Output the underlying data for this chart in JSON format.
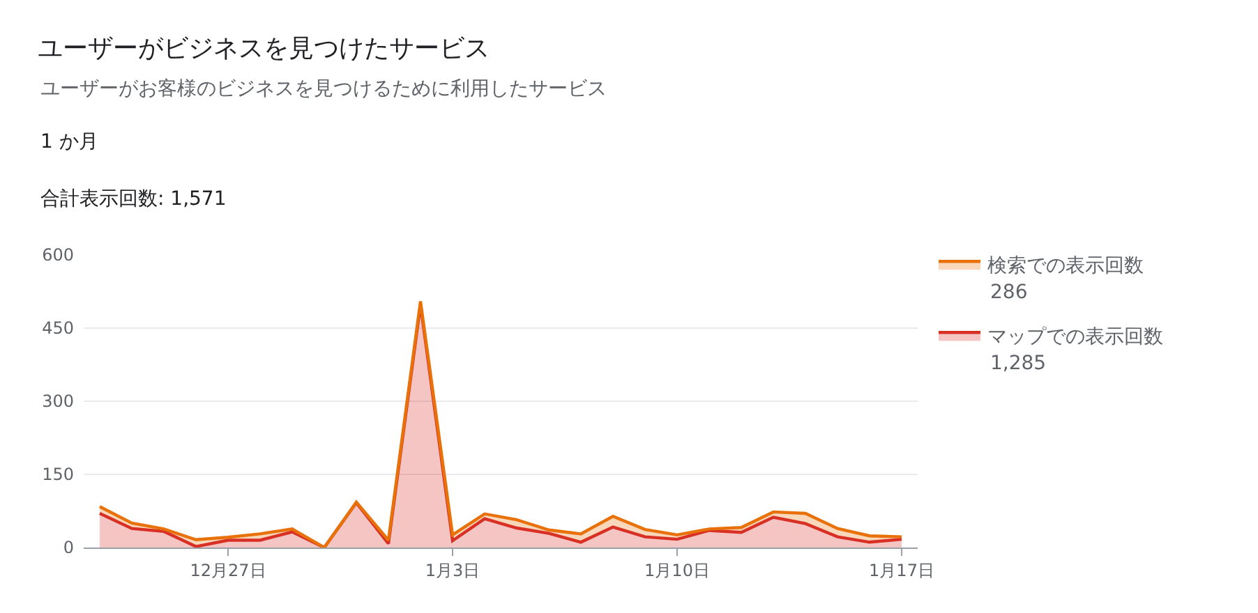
{
  "chart_data": {
    "type": "area",
    "title": "ユーザーがビジネスを見つけたサービス",
    "subtitle": "ユーザーがお客様のビジネスを見つけるために利用したサービス",
    "annotations": [
      "1 か月",
      "合計表示回数: 1,571",
      "286",
      "1,285"
    ],
    "categories": [
      null,
      null,
      null,
      null,
      "12月27日",
      null,
      null,
      null,
      null,
      null,
      null,
      "1月3日",
      null,
      null,
      null,
      null,
      null,
      null,
      "1月10日",
      null,
      null,
      null,
      null,
      null,
      null,
      "1月17日"
    ],
    "series": [
      {
        "name": "マップでの表示回数",
        "color": "#d93025",
        "values": [
          70,
          39,
          33,
          2,
          15,
          15,
          32,
          0,
          92,
          8,
          498,
          14,
          59,
          40,
          29,
          11,
          42,
          22,
          17,
          35,
          31,
          62,
          49,
          22,
          11,
          17
        ]
      },
      {
        "name": "検索での表示回数",
        "color": "#e8710a",
        "values": [
          14,
          11,
          5,
          14,
          6,
          13,
          6,
          0,
          1,
          7,
          7,
          12,
          10,
          17,
          7,
          17,
          22,
          15,
          9,
          3,
          10,
          11,
          21,
          17,
          13,
          5
        ]
      }
    ],
    "stacked": true,
    "ylim": [
      0,
      600
    ],
    "yticks": [
      0,
      150,
      300,
      450,
      600
    ],
    "grid": "y",
    "legend": "top right"
  }
}
